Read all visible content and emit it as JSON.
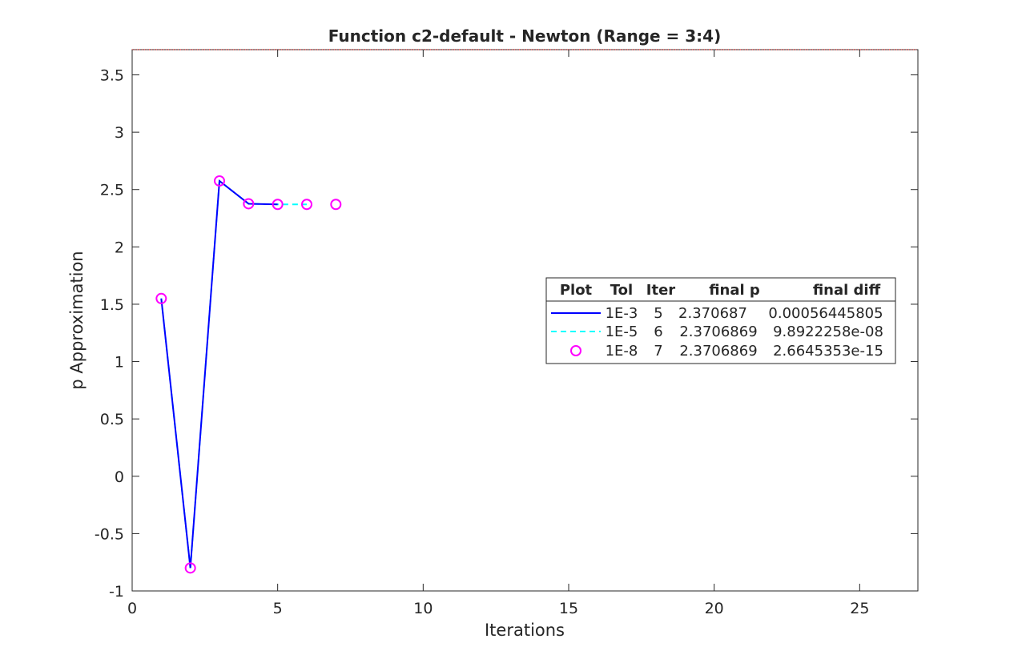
{
  "chart_data": {
    "type": "line",
    "title": "Function c2-default - Newton (Range = 3:4)",
    "xlabel": "Iterations",
    "ylabel": "p Approximation",
    "xlim": [
      0,
      27
    ],
    "ylim": [
      -1,
      3.72
    ],
    "xticks": [
      0,
      5,
      10,
      15,
      20,
      25
    ],
    "yticks": [
      -1,
      -0.5,
      0,
      0.5,
      1,
      1.5,
      2,
      2.5,
      3,
      3.5
    ],
    "xtick_labels": [
      "0",
      "5",
      "10",
      "15",
      "20",
      "25"
    ],
    "ytick_labels": [
      "-1",
      "-0.5",
      "0",
      "0.5",
      "1",
      "1.5",
      "2",
      "2.5",
      "3",
      "3.5"
    ],
    "grid": false,
    "series": [
      {
        "style": "solid-line",
        "color": "#0000ff",
        "x": [
          1,
          2,
          3,
          4,
          5
        ],
        "y": [
          1.55,
          -0.8,
          2.5751,
          2.3761,
          2.3707
        ]
      },
      {
        "style": "dashed-line",
        "color": "#00ffff",
        "x": [
          1,
          2,
          3,
          4,
          5,
          6
        ],
        "y": [
          1.55,
          -0.8,
          2.5751,
          2.3761,
          2.3707,
          2.3707
        ]
      },
      {
        "style": "circle-markers",
        "color": "#ff00ff",
        "x": [
          1,
          2,
          3,
          4,
          5,
          6,
          7
        ],
        "y": [
          1.55,
          -0.8,
          2.5751,
          2.3761,
          2.3707,
          2.3707,
          2.3707
        ]
      }
    ],
    "legend": {
      "placement": "center-right",
      "headers": [
        "Plot",
        "Tol",
        "Iter",
        "final p",
        "final diff"
      ],
      "rows": [
        {
          "tol": "1E-3",
          "iter": "5",
          "final_p": "2.370687",
          "final_diff": "0.00056445805"
        },
        {
          "tol": "1E-5",
          "iter": "6",
          "final_p": "2.3706869",
          "final_diff": "9.8922258e-08"
        },
        {
          "tol": "1E-8",
          "iter": "7",
          "final_p": "2.3706869",
          "final_diff": "2.6645353e-15"
        }
      ]
    }
  }
}
